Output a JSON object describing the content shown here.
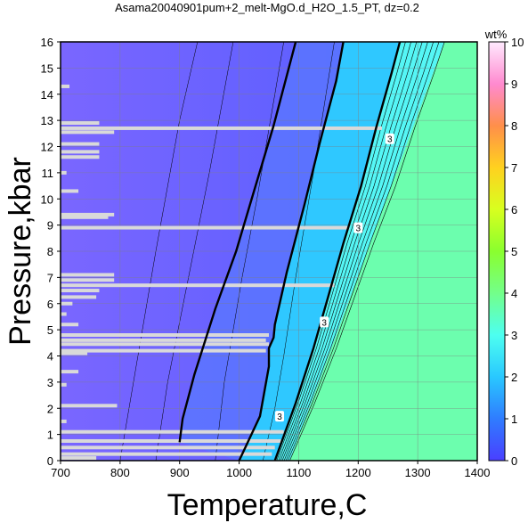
{
  "chart_data": {
    "type": "heatmap",
    "title": "Asama20040901pum+2_melt-MgO.d_H2O_1.5_PT, dz=0.2",
    "xlabel": "Temperature,C",
    "ylabel": "Pressure,kbar",
    "xlim": [
      700,
      1400
    ],
    "ylim": [
      0,
      16
    ],
    "x_ticks": [
      "700",
      "800",
      "900",
      "1000",
      "1100",
      "1200",
      "1300",
      "1400"
    ],
    "y_ticks": [
      "0",
      "1",
      "2",
      "3",
      "4",
      "5",
      "6",
      "7",
      "8",
      "9",
      "10",
      "11",
      "12",
      "13",
      "14",
      "15",
      "16"
    ],
    "grid": true,
    "colorbar": {
      "unit": "wt%",
      "range": [
        0,
        10
      ],
      "ticks": [
        "0",
        "1",
        "2",
        "3",
        "4",
        "5",
        "6",
        "7",
        "8",
        "9",
        "10"
      ],
      "colors": [
        "#4a3fff",
        "#29a6ff",
        "#35f0ff",
        "#6dffb0",
        "#7bff3a",
        "#c8ff22",
        "#ffef1f",
        "#ff9d3c",
        "#ff7fb8",
        "#ffb9ff",
        "#ffeaff"
      ]
    },
    "colors": {
      "low_region": "#7762ff",
      "high_region": "#6cfeae",
      "no_data_rows": "#d9d9d9",
      "contour": "#000000"
    },
    "contour_labels": [
      {
        "text": "3",
        "x": 1253,
        "y": 12.3
      },
      {
        "text": "3",
        "x": 1200,
        "y": 8.9
      },
      {
        "text": "3",
        "x": 1143,
        "y": 5.3
      },
      {
        "text": "3",
        "x": 1068,
        "y": 1.7
      }
    ],
    "bold_contours": [
      {
        "name": "c1",
        "points": [
          [
            900,
            0.7
          ],
          [
            905,
            1.6
          ],
          [
            925,
            3.3
          ],
          [
            960,
            5.8
          ],
          [
            995,
            8.0
          ],
          [
            1025,
            10.3
          ],
          [
            1058,
            12.8
          ],
          [
            1095,
            16
          ]
        ]
      },
      {
        "name": "c2",
        "points": [
          [
            1000,
            0.0
          ],
          [
            1035,
            1.7
          ],
          [
            1050,
            3.6
          ],
          [
            1050,
            4.3
          ],
          [
            1058,
            4.7
          ],
          [
            1060,
            5.2
          ],
          [
            1080,
            7.2
          ],
          [
            1110,
            9.8
          ],
          [
            1135,
            12.1
          ],
          [
            1163,
            14.5
          ],
          [
            1175,
            16
          ]
        ]
      },
      {
        "name": "c3",
        "points": [
          [
            1060,
            0.0
          ],
          [
            1095,
            2.2
          ],
          [
            1125,
            4.3
          ],
          [
            1150,
            6.3
          ],
          [
            1175,
            8.3
          ],
          [
            1205,
            10.5
          ],
          [
            1230,
            12.7
          ],
          [
            1256,
            14.8
          ],
          [
            1270,
            16
          ]
        ]
      }
    ],
    "no_data_rows": [
      {
        "p": 0.1,
        "t_end": 760
      },
      {
        "p": 0.25,
        "t_end": 1055
      },
      {
        "p": 0.5,
        "t_end": 1060
      },
      {
        "p": 0.75,
        "t_end": 1070
      },
      {
        "p": 1.1,
        "t_end": 1075
      },
      {
        "p": 1.5,
        "t_end": 710
      },
      {
        "p": 2.1,
        "t_end": 795
      },
      {
        "p": 2.9,
        "t_end": 710
      },
      {
        "p": 3.4,
        "t_end": 730
      },
      {
        "p": 4.1,
        "t_end": 745
      },
      {
        "p": 4.2,
        "t_end": 1045
      },
      {
        "p": 4.45,
        "t_end": 1050
      },
      {
        "p": 4.6,
        "t_end": 1045
      },
      {
        "p": 4.8,
        "t_end": 1050
      },
      {
        "p": 5.2,
        "t_end": 730
      },
      {
        "p": 5.6,
        "t_end": 710
      },
      {
        "p": 6.0,
        "t_end": 720
      },
      {
        "p": 6.25,
        "t_end": 760
      },
      {
        "p": 6.5,
        "t_end": 765
      },
      {
        "p": 6.7,
        "t_end": 1160
      },
      {
        "p": 6.9,
        "t_end": 790
      },
      {
        "p": 7.1,
        "t_end": 790
      },
      {
        "p": 8.9,
        "t_end": 1185
      },
      {
        "p": 9.3,
        "t_end": 780
      },
      {
        "p": 9.4,
        "t_end": 790
      },
      {
        "p": 10.3,
        "t_end": 730
      },
      {
        "p": 11.0,
        "t_end": 710
      },
      {
        "p": 11.6,
        "t_end": 765
      },
      {
        "p": 11.8,
        "t_end": 765
      },
      {
        "p": 12.1,
        "t_end": 765
      },
      {
        "p": 12.55,
        "t_end": 790
      },
      {
        "p": 12.7,
        "t_end": 1240
      },
      {
        "p": 12.9,
        "t_end": 765
      },
      {
        "p": 14.3,
        "t_end": 715
      }
    ]
  }
}
